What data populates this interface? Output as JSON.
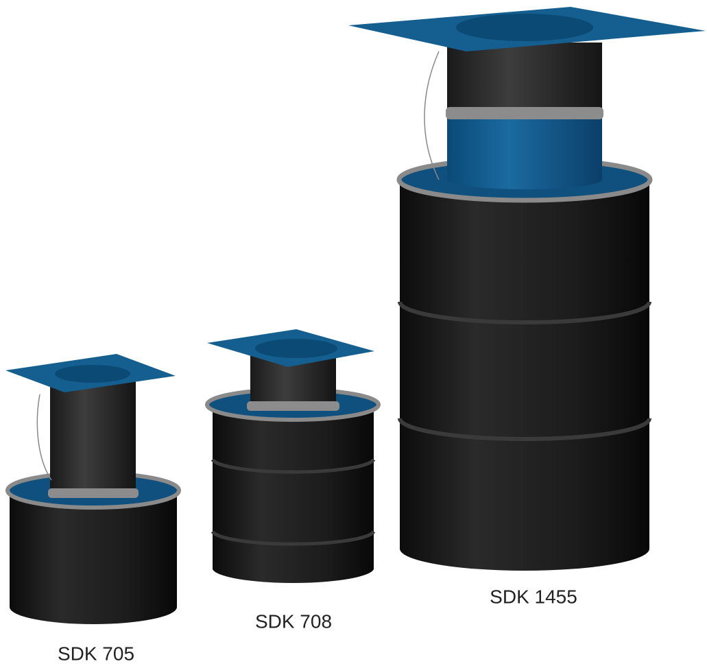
{
  "products": [
    {
      "label": "SDK 705"
    },
    {
      "label": "SDK 708"
    },
    {
      "label": "SDK 1455"
    }
  ]
}
